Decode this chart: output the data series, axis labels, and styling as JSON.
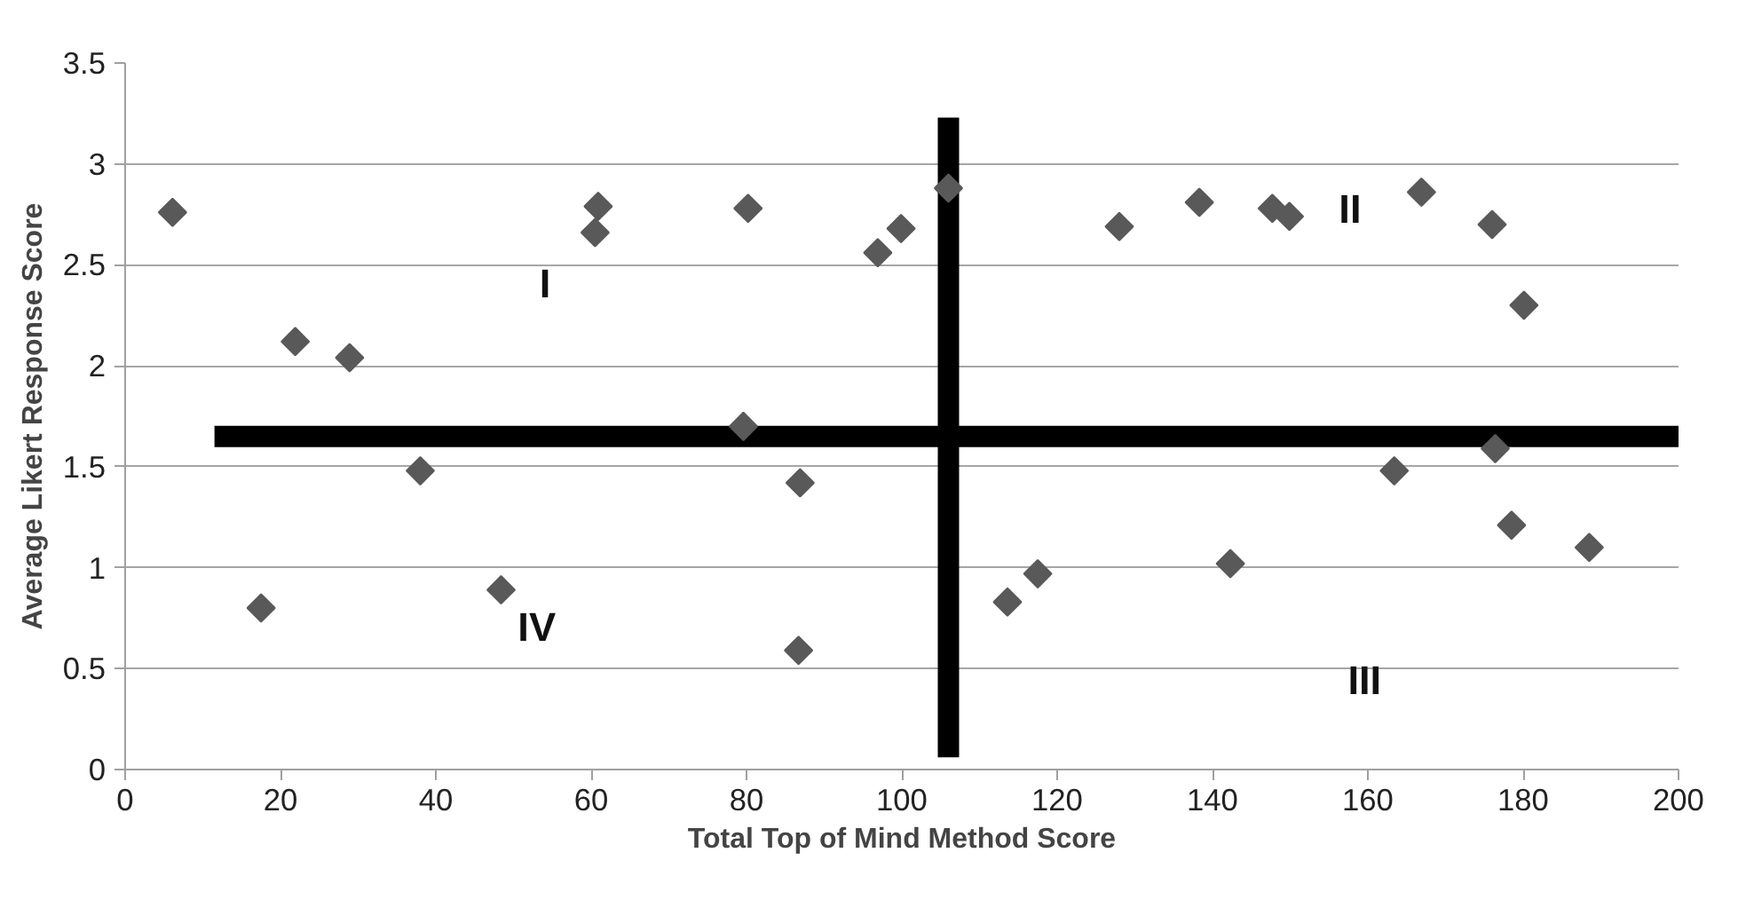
{
  "chart_data": {
    "type": "scatter",
    "xlabel": "Total Top of Mind Method Score",
    "ylabel": "Average Likert Response Score",
    "xlim": [
      0,
      200
    ],
    "xticks": [
      0,
      20,
      40,
      60,
      80,
      100,
      120,
      140,
      160,
      180,
      200
    ],
    "ylim": [
      0,
      3.5
    ],
    "yticks": [
      0,
      0.5,
      1,
      1.5,
      2,
      2.5,
      3,
      3.5
    ],
    "grid": "y",
    "marker": "diamond",
    "series": [
      {
        "color": "#595959",
        "x": [
          6.1,
          21.9,
          28.9,
          38.0,
          17.5,
          48.4,
          60.9,
          60.5,
          80.2,
          79.6,
          86.9,
          86.7,
          96.9,
          99.9,
          106.0,
          128.0,
          138.3,
          147.7,
          149.9,
          166.9,
          176.0,
          180.1,
          176.4,
          163.4,
          178.5,
          188.5,
          142.3,
          117.5,
          113.6
        ],
        "values": [
          2.76,
          2.12,
          2.04,
          1.48,
          0.8,
          0.89,
          2.79,
          2.66,
          2.78,
          1.7,
          1.42,
          0.59,
          2.56,
          2.68,
          2.88,
          2.69,
          2.81,
          2.78,
          2.74,
          2.86,
          2.7,
          2.3,
          1.59,
          1.48,
          1.21,
          1.1,
          1.02,
          0.97,
          0.83
        ]
      },
      {
        "type": "line",
        "color": "#000000",
        "marker": "none",
        "x": [
          11.5,
          200
        ],
        "values": [
          1.65,
          1.65
        ]
      },
      {
        "type": "line",
        "color": "#000000",
        "marker": "none",
        "x": [
          106,
          106
        ],
        "values": [
          0.06,
          3.23
        ]
      }
    ],
    "annotations": [
      "I",
      "II",
      "III",
      "IV"
    ]
  }
}
